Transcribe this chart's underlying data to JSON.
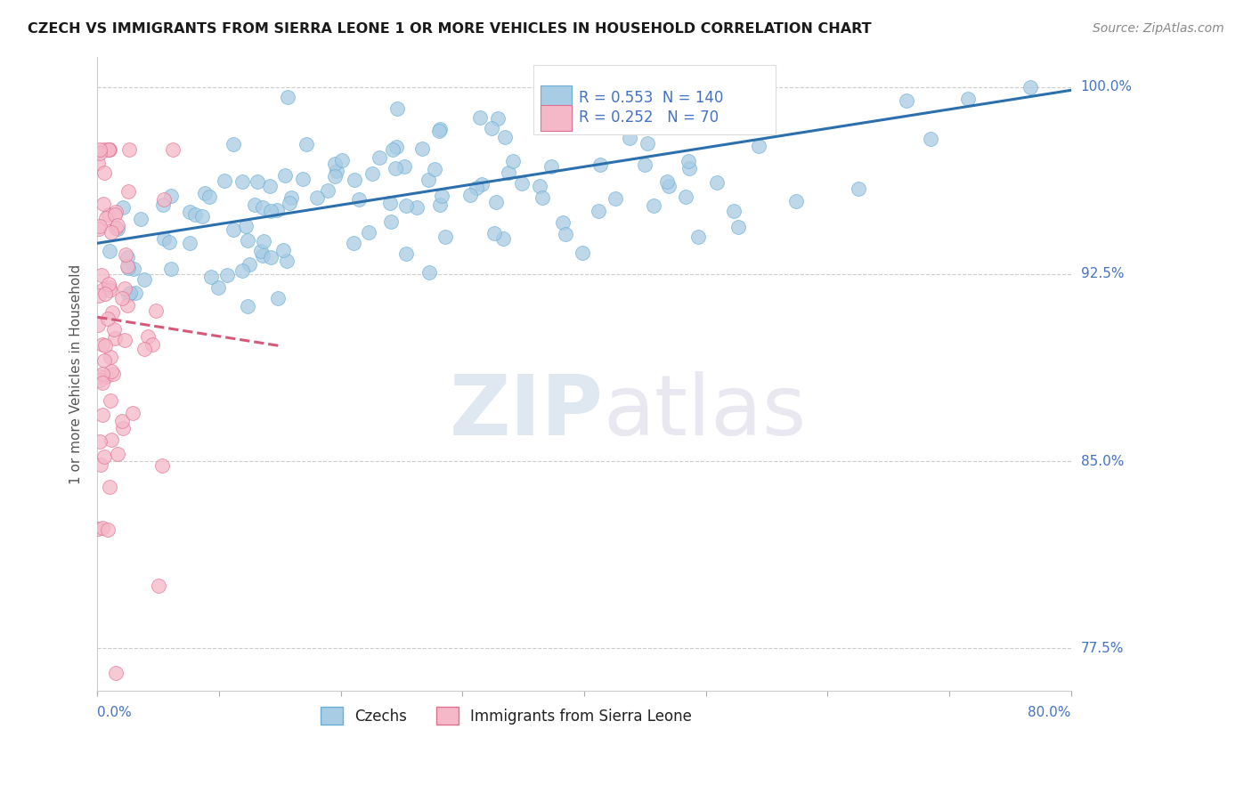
{
  "title": "CZECH VS IMMIGRANTS FROM SIERRA LEONE 1 OR MORE VEHICLES IN HOUSEHOLD CORRELATION CHART",
  "source": "Source: ZipAtlas.com",
  "legend_blue_label": "Czechs",
  "legend_pink_label": "Immigrants from Sierra Leone",
  "R_blue": 0.553,
  "N_blue": 140,
  "R_pink": 0.252,
  "N_pink": 70,
  "blue_color": "#a8cce4",
  "blue_edge_color": "#6aaed6",
  "pink_color": "#f4b8c8",
  "pink_edge_color": "#e07090",
  "blue_trend_color": "#2c6fad",
  "pink_trend_color": "#d45a78",
  "ylabel_label": "1 or more Vehicles in Household",
  "watermark_zip": "ZIP",
  "watermark_atlas": "atlas",
  "xmin": 0.0,
  "xmax": 0.8,
  "ymin": 0.758,
  "ymax": 1.012,
  "ytick_positions": [
    0.775,
    0.85,
    0.925,
    1.0
  ],
  "ytick_labels": [
    "77.5%",
    "85.0%",
    "92.5%",
    "100.0%"
  ],
  "title_fontsize": 11.5,
  "source_fontsize": 10,
  "axis_tick_color": "#4472c4",
  "dot_size": 130
}
